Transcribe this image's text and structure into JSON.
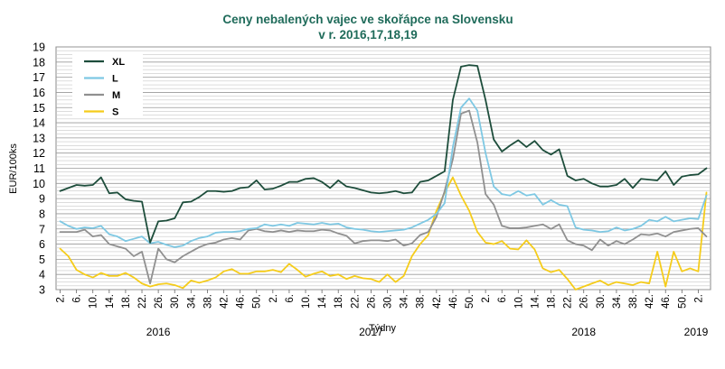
{
  "chart_data": {
    "type": "line",
    "title": "Ceny nebalených vajec ve skořápce na Slovensku",
    "subtitle": "v r. 2016,17,18,19",
    "xlabel": "Týdny",
    "ylabel": "EUR/100ks",
    "ylim": [
      3,
      19
    ],
    "yticks": [
      3,
      4,
      5,
      6,
      7,
      8,
      9,
      10,
      11,
      12,
      13,
      14,
      15,
      16,
      17,
      18,
      19
    ],
    "x_tick_labels": [
      "2.",
      "6.",
      "10.",
      "14.",
      "18.",
      "22.",
      "26.",
      "30.",
      "34.",
      "38.",
      "42.",
      "46.",
      "50.",
      "2.",
      "6.",
      "10.",
      "14.",
      "18.",
      "22.",
      "26.",
      "30.",
      "34.",
      "38.",
      "42.",
      "46.",
      "50.",
      "2.",
      "6.",
      "10.",
      "14.",
      "18.",
      "22.",
      "26.",
      "30.",
      "34.",
      "38.",
      "42.",
      "46.",
      "50.",
      "2."
    ],
    "years": [
      {
        "label": "2016",
        "at_tick": 6
      },
      {
        "label": "2017",
        "at_tick": 19
      },
      {
        "label": "2018",
        "at_tick": 32
      },
      {
        "label": "2019",
        "at_tick": 39
      }
    ],
    "grid": true,
    "legend_position": "top-left",
    "series": [
      {
        "name": "XL",
        "color": "#1d4d3b",
        "values": [
          9.5,
          9.7,
          9.9,
          9.85,
          9.9,
          10.4,
          9.35,
          9.4,
          8.95,
          8.85,
          8.8,
          6.1,
          7.5,
          7.55,
          7.7,
          8.75,
          8.8,
          9.1,
          9.5,
          9.5,
          9.45,
          9.5,
          9.7,
          9.75,
          10.2,
          9.6,
          9.65,
          9.85,
          10.1,
          10.1,
          10.3,
          10.35,
          10.1,
          9.7,
          10.2,
          9.8,
          9.7,
          9.55,
          9.4,
          9.35,
          9.4,
          9.5,
          9.35,
          9.4,
          10.1,
          10.2,
          10.5,
          10.8,
          15.5,
          17.7,
          17.8,
          17.75,
          15.5,
          12.9,
          12.1,
          12.5,
          12.85,
          12.4,
          12.8,
          12.2,
          11.9,
          12.25,
          10.5,
          10.2,
          10.3,
          10.0,
          9.8,
          9.8,
          9.9,
          10.3,
          9.7,
          10.3,
          10.25,
          10.2,
          10.8,
          9.9,
          10.45,
          10.55,
          10.6,
          11.0
        ]
      },
      {
        "name": "L",
        "color": "#7ec8e3",
        "values": [
          7.5,
          7.2,
          7.0,
          7.1,
          7.05,
          7.2,
          6.65,
          6.5,
          6.2,
          6.35,
          6.5,
          6.05,
          6.15,
          5.95,
          5.8,
          5.9,
          6.2,
          6.4,
          6.5,
          6.75,
          6.8,
          6.8,
          6.85,
          7.0,
          7.05,
          7.3,
          7.2,
          7.3,
          7.2,
          7.4,
          7.35,
          7.3,
          7.4,
          7.3,
          7.35,
          7.1,
          7.0,
          6.95,
          6.85,
          6.8,
          6.85,
          6.9,
          6.95,
          7.1,
          7.35,
          7.6,
          8.0,
          8.7,
          12.4,
          15.0,
          15.6,
          14.8,
          12.0,
          9.8,
          9.3,
          9.2,
          9.5,
          9.2,
          9.3,
          8.6,
          8.9,
          8.6,
          8.5,
          7.1,
          6.95,
          6.9,
          6.8,
          6.85,
          7.1,
          6.9,
          7.0,
          7.2,
          7.6,
          7.5,
          7.8,
          7.5,
          7.6,
          7.7,
          7.65,
          9.2
        ]
      },
      {
        "name": "M",
        "color": "#909090",
        "values": [
          6.8,
          6.8,
          6.8,
          6.95,
          6.5,
          6.6,
          6.0,
          5.85,
          5.7,
          5.2,
          5.5,
          3.4,
          5.7,
          5.0,
          4.8,
          5.2,
          5.5,
          5.8,
          6.0,
          6.1,
          6.3,
          6.4,
          6.3,
          6.9,
          7.0,
          6.85,
          6.8,
          6.9,
          6.8,
          6.9,
          6.85,
          6.85,
          6.95,
          6.9,
          6.7,
          6.55,
          6.05,
          6.2,
          6.25,
          6.25,
          6.2,
          6.3,
          5.9,
          6.05,
          6.6,
          6.8,
          7.8,
          9.5,
          11.6,
          14.6,
          14.8,
          12.7,
          9.3,
          8.6,
          7.2,
          7.05,
          7.05,
          7.1,
          7.2,
          7.3,
          7.0,
          7.3,
          6.25,
          6.0,
          5.9,
          5.6,
          6.3,
          5.9,
          6.2,
          6.0,
          6.3,
          6.65,
          6.6,
          6.7,
          6.5,
          6.8,
          6.9,
          7.0,
          7.05,
          6.5
        ]
      },
      {
        "name": "S",
        "color": "#f5cc1b",
        "values": [
          5.7,
          5.2,
          4.3,
          4.0,
          3.8,
          4.1,
          3.9,
          3.9,
          4.1,
          3.8,
          3.4,
          3.2,
          3.35,
          3.4,
          3.3,
          3.1,
          3.6,
          3.45,
          3.6,
          3.8,
          4.2,
          4.35,
          4.05,
          4.05,
          4.2,
          4.2,
          4.3,
          4.15,
          4.7,
          4.3,
          3.85,
          4.05,
          4.2,
          3.9,
          4.0,
          3.7,
          3.9,
          3.75,
          3.7,
          3.5,
          4.0,
          3.5,
          3.9,
          5.2,
          6.0,
          6.6,
          8.2,
          9.4,
          10.4,
          9.2,
          8.2,
          6.8,
          6.1,
          6.0,
          6.2,
          5.7,
          5.65,
          6.25,
          5.65,
          4.4,
          4.15,
          4.3,
          3.7,
          3.0,
          3.2,
          3.4,
          3.6,
          3.3,
          3.5,
          3.4,
          3.3,
          3.5,
          3.4,
          5.5,
          3.2,
          5.5,
          4.2,
          4.4,
          4.2,
          9.4
        ]
      }
    ]
  }
}
